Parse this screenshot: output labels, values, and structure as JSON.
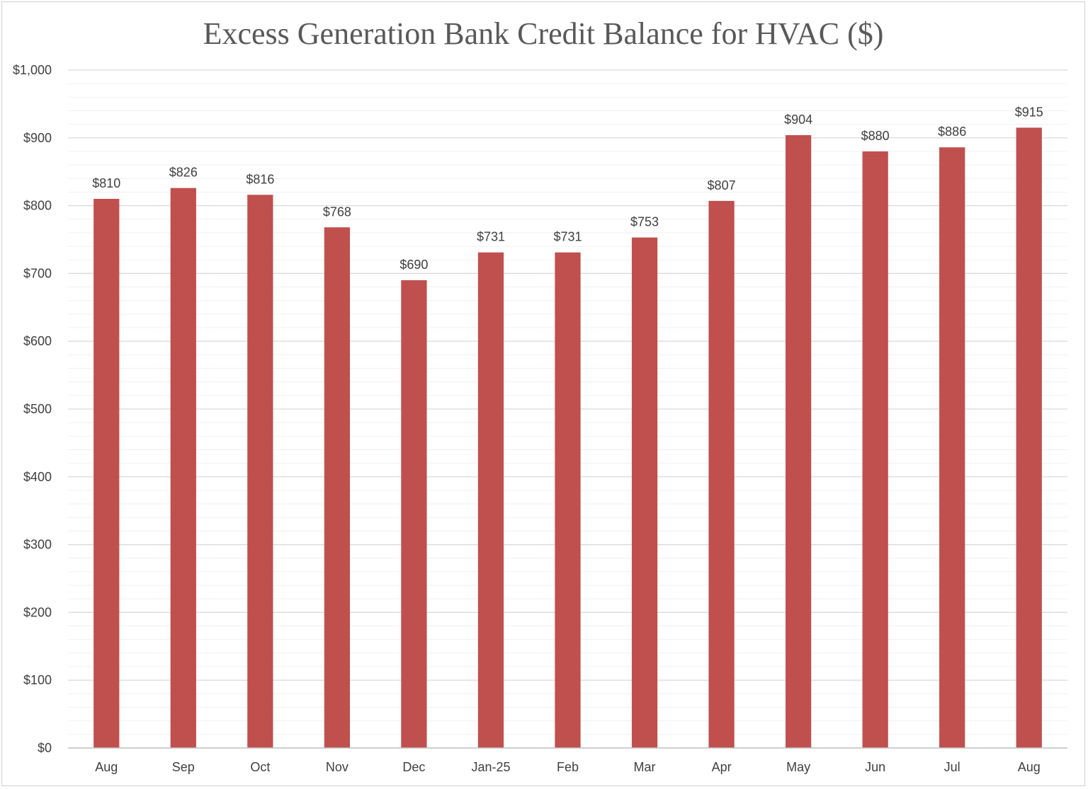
{
  "chart_data": {
    "type": "bar",
    "title": "Excess Generation Bank Credit Balance for HVAC ($)",
    "xlabel": "",
    "ylabel": "",
    "categories": [
      "Aug",
      "Sep",
      "Oct",
      "Nov",
      "Dec",
      "Jan-25",
      "Feb",
      "Mar",
      "Apr",
      "May",
      "Jun",
      "Jul",
      "Aug"
    ],
    "values": [
      810,
      826,
      816,
      768,
      690,
      731,
      731,
      753,
      807,
      904,
      880,
      886,
      915
    ],
    "data_labels": [
      "$810",
      "$826",
      "$816",
      "$768",
      "$690",
      "$731",
      "$731",
      "$753",
      "$807",
      "$904",
      "$880",
      "$886",
      "$915"
    ],
    "ylim": [
      0,
      1000
    ],
    "y_ticks": [
      0,
      100,
      200,
      300,
      400,
      500,
      600,
      700,
      800,
      900,
      1000
    ],
    "y_tick_labels": [
      "$0",
      "$100",
      "$200",
      "$300",
      "$400",
      "$500",
      "$600",
      "$700",
      "$800",
      "$900",
      "$1,000"
    ],
    "major_grid": true,
    "minor_grid": true,
    "legend": "none",
    "bar_color": "#C0504D"
  }
}
